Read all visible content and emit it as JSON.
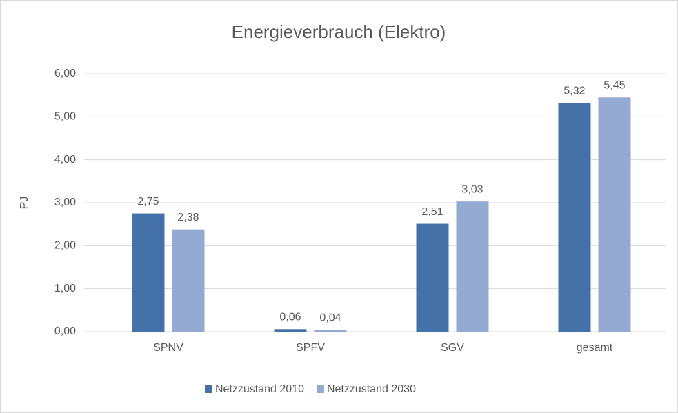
{
  "chart_data": {
    "type": "bar",
    "title": "Energieverbrauch (Elektro)",
    "y_label": "PJ",
    "categories": [
      "SPNV",
      "SPFV",
      "SGV",
      "gesamt"
    ],
    "series": [
      {
        "name": "Netzzustand 2010",
        "color": "#4472a8",
        "values": [
          2.75,
          0.06,
          2.51,
          5.32
        ],
        "value_labels": [
          "2,75",
          "0,06",
          "2,51",
          "5,32"
        ]
      },
      {
        "name": "Netzzustand 2030",
        "color": "#95aad2",
        "values": [
          2.38,
          0.04,
          3.03,
          5.45
        ],
        "value_labels": [
          "2,38",
          "0,04",
          "3,03",
          "5,45"
        ]
      }
    ],
    "ylim": [
      0,
      6
    ],
    "yticks": [
      {
        "value": 0,
        "label": "0,00"
      },
      {
        "value": 1,
        "label": "1,00"
      },
      {
        "value": 2,
        "label": "2,00"
      },
      {
        "value": 3,
        "label": "3,00"
      },
      {
        "value": 4,
        "label": "4,00"
      },
      {
        "value": 5,
        "label": "5,00"
      },
      {
        "value": 6,
        "label": "6,00"
      }
    ],
    "grid": true,
    "legend": "bottom"
  }
}
